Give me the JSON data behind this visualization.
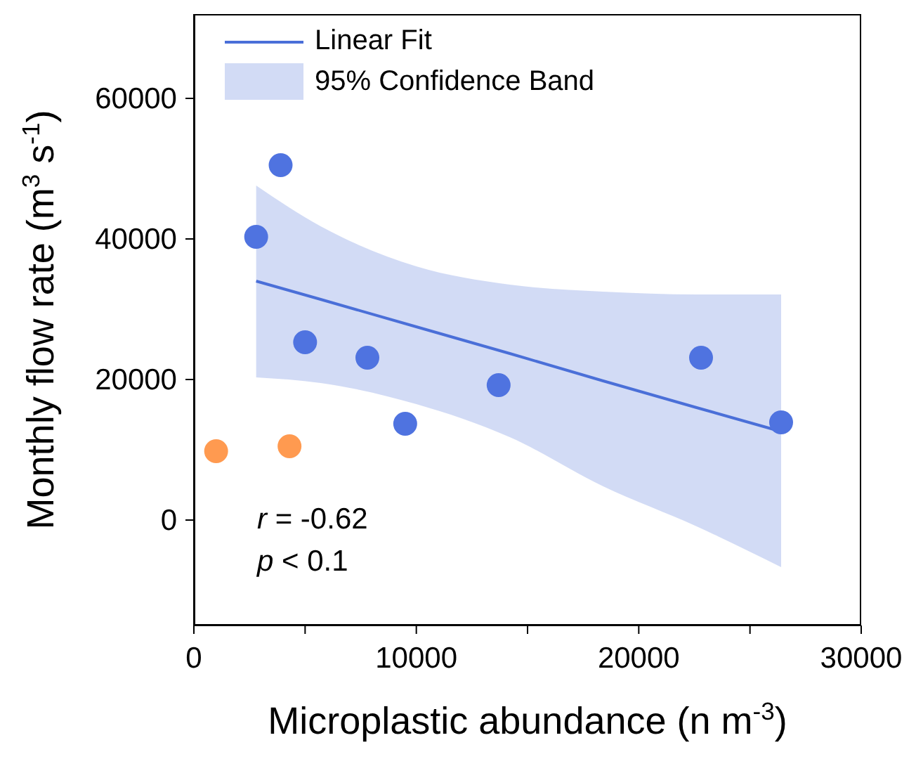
{
  "chart_data": {
    "type": "scatter",
    "xlabel": "Microplastic abundance (n m$^{-3}$)",
    "ylabel": "Monthly flow rate (m$^{3}$ s$^{-1}$)",
    "xlim": [
      0,
      30000
    ],
    "ylim": [
      -15000,
      72000
    ],
    "xticks": [
      0,
      {
        "value": 5000,
        "label": null
      },
      10000,
      {
        "value": 15000,
        "label": null
      },
      20000,
      {
        "value": 25000,
        "label": null
      },
      30000
    ],
    "yticks": [
      0,
      20000,
      40000,
      60000
    ],
    "series": [
      {
        "type": "line",
        "name": "Linear Fit",
        "color": "#4a6fd8",
        "x": [
          2800,
          5700,
          10000,
          14200,
          18400,
          22600,
          26400
        ],
        "values": [
          34000,
          31400,
          27500,
          23700,
          19800,
          16000,
          12600
        ],
        "lower": [
          20300,
          19500,
          16500,
          11800,
          4800,
          -900,
          -6700
        ],
        "upper": [
          47600,
          41800,
          36100,
          33500,
          32500,
          32100,
          32100
        ]
      },
      {
        "color": "#4f73e0",
        "marker": "circle",
        "x": [
          2800,
          3900,
          5000,
          7800,
          9500,
          13700,
          22800,
          26400
        ],
        "values": [
          40300,
          50500,
          25300,
          23100,
          13700,
          19200,
          23100,
          13900
        ]
      },
      {
        "color": "#ff9a50",
        "marker": "circle",
        "x": [
          1000,
          4300
        ],
        "values": [
          9800,
          10500
        ]
      }
    ],
    "annotations": [
      "95% Confidence Band",
      "r = -0.62",
      "p < 0.1"
    ],
    "legend": "top left"
  }
}
